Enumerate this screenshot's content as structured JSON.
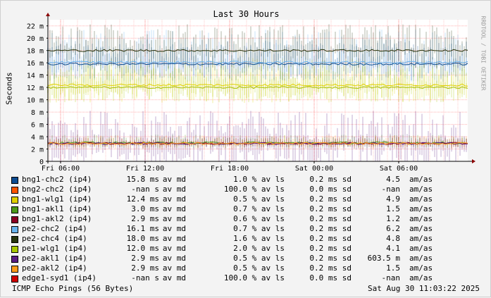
{
  "chart_data": {
    "type": "line",
    "title": "Last 30 Hours",
    "ylabel": "Seconds",
    "ylim": [
      0,
      23
    ],
    "y_unit_suffix": "m",
    "y_ticks": [
      {
        "value": 0,
        "label": "0"
      },
      {
        "value": 2,
        "label": "2 m"
      },
      {
        "value": 4,
        "label": "4 m"
      },
      {
        "value": 6,
        "label": "6 m"
      },
      {
        "value": 8,
        "label": "8 m"
      },
      {
        "value": 10,
        "label": "10 m"
      },
      {
        "value": 12,
        "label": "12 m"
      },
      {
        "value": 14,
        "label": "14 m"
      },
      {
        "value": 16,
        "label": "16 m"
      },
      {
        "value": 18,
        "label": "18 m"
      },
      {
        "value": 20,
        "label": "20 m"
      },
      {
        "value": 22,
        "label": "22 m"
      }
    ],
    "x_ticks": [
      "Fri 06:00",
      "Fri 12:00",
      "Fri 18:00",
      "Sat 00:00",
      "Sat 06:00"
    ],
    "grid": true,
    "series": [
      {
        "name": "bng1-chc2 (ip4)",
        "color": "#0e4d92",
        "median": 15.8,
        "avg": "15.8",
        "avunit": "ms av md",
        "loss": "1.0",
        "ls": "0.2",
        "sd": "4.5",
        "amunit": "am/as"
      },
      {
        "name": "bng2-chc2 (ip4)",
        "color": "#ff5500",
        "median": null,
        "avg": "-nan",
        "avunit": "s av md",
        "loss": "100.0",
        "ls": "0.0",
        "sd": "-nan",
        "amunit": "am/as"
      },
      {
        "name": "bng1-wlg1 (ip4)",
        "color": "#e0d000",
        "median": 12.4,
        "avg": "12.4",
        "avunit": "ms av md",
        "loss": "0.5",
        "ls": "0.2",
        "sd": "4.9",
        "amunit": "am/as"
      },
      {
        "name": "bng1-akl1 (ip4)",
        "color": "#4c9a1a",
        "median": 3.0,
        "avg": "3.0",
        "avunit": "ms av md",
        "loss": "0.7",
        "ls": "0.2",
        "sd": "1.5",
        "amunit": "am/as"
      },
      {
        "name": "bng1-akl2 (ip4)",
        "color": "#8b0024",
        "median": 2.9,
        "avg": "2.9",
        "avunit": "ms av md",
        "loss": "0.6",
        "ls": "0.2",
        "sd": "1.2",
        "amunit": "am/as"
      },
      {
        "name": "pe2-chc2 (ip4)",
        "color": "#6ab4ee",
        "median": 16.1,
        "avg": "16.1",
        "avunit": "ms av md",
        "loss": "0.7",
        "ls": "0.2",
        "sd": "6.2",
        "amunit": "am/as"
      },
      {
        "name": "pe2-chc4 (ip4)",
        "color": "#28360e",
        "median": 18.0,
        "avg": "18.0",
        "avunit": "ms av md",
        "loss": "1.6",
        "ls": "0.2",
        "sd": "4.8",
        "amunit": "am/as"
      },
      {
        "name": "pe1-wlg1 (ip4)",
        "color": "#a8c800",
        "median": 12.0,
        "avg": "12.0",
        "avunit": "ms av md",
        "loss": "2.0",
        "ls": "0.2",
        "sd": "4.1",
        "amunit": "am/as"
      },
      {
        "name": "pe2-akl1 (ip4)",
        "color": "#5a1e82",
        "median": 2.9,
        "avg": "2.9",
        "avunit": "ms av md",
        "loss": "0.5",
        "ls": "0.2",
        "sd": "603.5 m",
        "amunit": "am/as"
      },
      {
        "name": "pe2-akl2 (ip4)",
        "color": "#ff9a1a",
        "median": 2.9,
        "avg": "2.9",
        "avunit": "ms av md",
        "loss": "0.5",
        "ls": "0.2",
        "sd": "1.5",
        "amunit": "am/as"
      },
      {
        "name": "edge1-syd1 (ip4)",
        "color": "#d00000",
        "median": null,
        "avg": "-nan",
        "avunit": "s av md",
        "loss": "100.0",
        "ls": "0.0",
        "sd": "-nan",
        "amunit": "am/as"
      }
    ]
  },
  "legend_suffixes": {
    "loss": "% av ls",
    "ls": "ms sd"
  },
  "footer": {
    "left": "ICMP Echo Pings (56 Bytes)",
    "right": "Sat Aug 30 11:03:22 2025"
  },
  "watermark": "RRDTOOL / TOBI OETIKER"
}
